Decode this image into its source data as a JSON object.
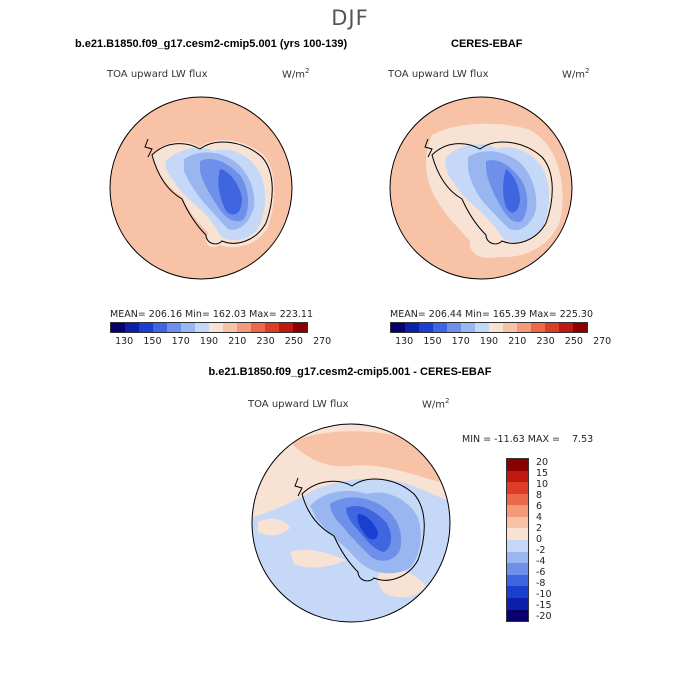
{
  "figure": {
    "season": "DJF",
    "variable": "TOA upward LW flux",
    "units_base": "W/m",
    "units_exp": "2"
  },
  "panels": {
    "model": {
      "title": "b.e21.B1850.f09_g17.cesm2-cmip5.001 (yrs 100-139)",
      "stats": "MEAN= 206.16   Min= 162.03   Max= 223.11"
    },
    "obs": {
      "title": "CERES-EBAF",
      "stats": "MEAN= 206.44   Min= 165.39   Max= 225.30"
    },
    "diff": {
      "title": "b.e21.B1850.f09_g17.cesm2-cmip5.001 - CERES-EBAF",
      "stats": "MIN = -11.63 MAX =    7.53"
    }
  },
  "colorbars": {
    "abs": {
      "colors": [
        "#08006e",
        "#0b1fa8",
        "#1a3fd0",
        "#3f66e0",
        "#6f90ea",
        "#9ab6f0",
        "#c6d8f7",
        "#f7e2d4",
        "#f7c2a6",
        "#f39a7a",
        "#ec6a4a",
        "#de3d25",
        "#c0170f",
        "#8a0000"
      ],
      "labels": [
        "130",
        "150",
        "170",
        "190",
        "210",
        "230",
        "250",
        "270"
      ]
    },
    "diff": {
      "colors": [
        "#08006e",
        "#0b1fa8",
        "#1a3fd0",
        "#3f66e0",
        "#6f90ea",
        "#9ab6f0",
        "#c6d8f7",
        "#f7e2d4",
        "#f7c2a6",
        "#f39a7a",
        "#ec6a4a",
        "#de3d25",
        "#c0170f",
        "#8a0000"
      ],
      "labels": [
        "20",
        "15",
        "10",
        "8",
        "6",
        "4",
        "2",
        "0",
        "-2",
        "-4",
        "-6",
        "-8",
        "-10",
        "-15",
        "-20"
      ]
    }
  }
}
